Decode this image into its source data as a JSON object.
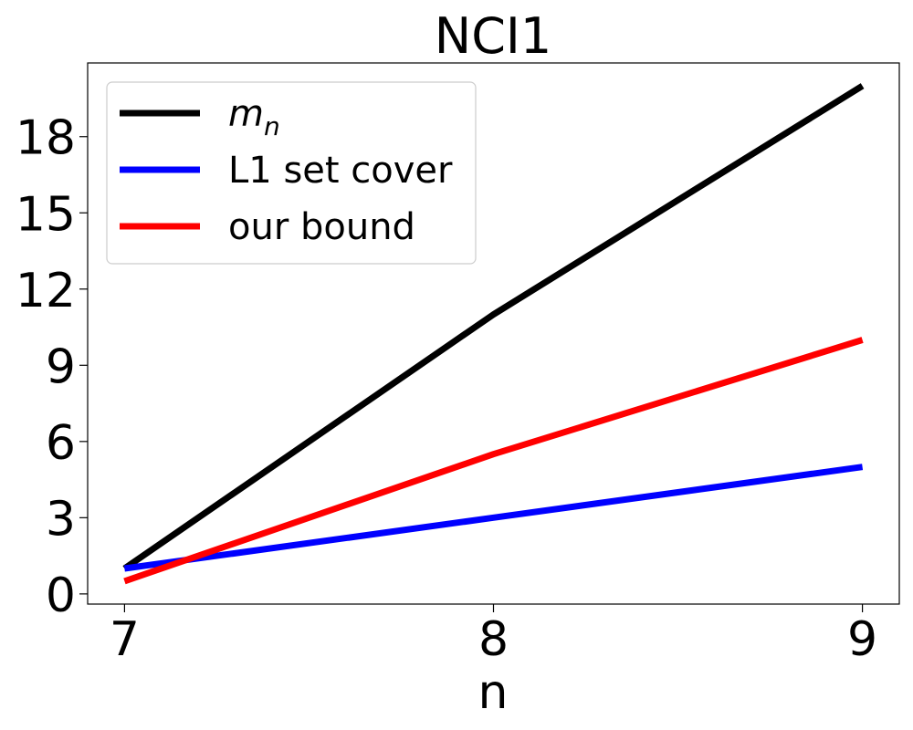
{
  "chart_data": {
    "type": "line",
    "title": "NCI1",
    "xlabel": "n",
    "ylabel": "",
    "x": [
      7,
      8,
      9
    ],
    "xticks": [
      "7",
      "8",
      "9"
    ],
    "yticks": [
      "0",
      "3",
      "6",
      "9",
      "12",
      "15",
      "18"
    ],
    "xlim": [
      6.9,
      9.1
    ],
    "ylim": [
      -0.4,
      20.9
    ],
    "grid": false,
    "legend_position": "top-left",
    "series": [
      {
        "name": "m",
        "subscript": "n",
        "values": [
          1,
          11,
          20
        ],
        "color": "#000000"
      },
      {
        "name": "L1 set cover",
        "values": [
          1,
          3,
          5
        ],
        "color": "#0000ff"
      },
      {
        "name": "our bound",
        "values": [
          0.5,
          5.5,
          10
        ],
        "color": "#ff0000"
      }
    ]
  }
}
